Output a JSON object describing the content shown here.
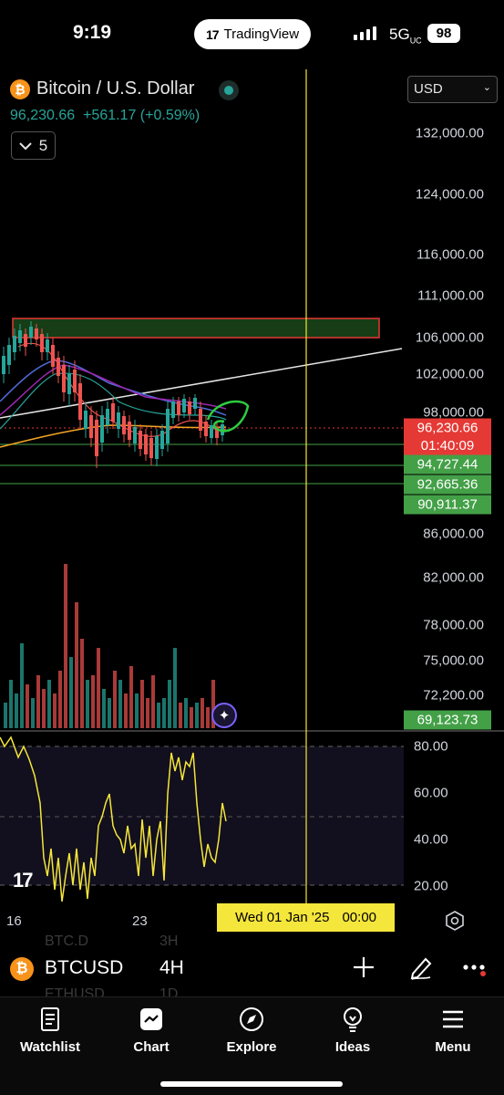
{
  "status_bar": {
    "time": "9:19",
    "app": "TradingView",
    "network": "5G",
    "network_sup": "UC",
    "battery": "98"
  },
  "header": {
    "badge": "₿",
    "pair_title": "Bitcoin / U.S. Dollar",
    "price": "96,230.66",
    "change": "+561.17 (+0.59%)",
    "collapse_count": "5",
    "currency": "USD"
  },
  "price_scale": [
    "132,000.00",
    "124,000.00",
    "116,000.00",
    "111,000.00",
    "106,000.00",
    "102,000.00",
    "98,000.00",
    "86,000.00",
    "82,000.00",
    "78,000.00",
    "75,000.00",
    "72,200.00"
  ],
  "price_tags": {
    "current": "96,230.66",
    "countdown": "01:40:09",
    "levels": [
      "94,727.44",
      "92,665.36",
      "90,911.37"
    ],
    "low": "69,123.73"
  },
  "oscillator_scale": [
    "80.00",
    "60.00",
    "40.00",
    "20.00"
  ],
  "time_axis": {
    "labels": [
      "16",
      "23"
    ],
    "cursor_date": "Wed 01 Jan '25",
    "cursor_time": "00:00"
  },
  "ghost_rows": {
    "row1_sym": "BTC.D",
    "row1_tf": "3H",
    "row2_sym": "ETHUSD",
    "row2_tf": "1D"
  },
  "symbol_bar": {
    "symbol": "BTCUSD",
    "timeframe": "4H"
  },
  "nav": [
    {
      "label": "Watchlist",
      "icon": "watchlist-icon"
    },
    {
      "label": "Chart",
      "icon": "chart-icon"
    },
    {
      "label": "Explore",
      "icon": "compass-icon"
    },
    {
      "label": "Ideas",
      "icon": "lightbulb-icon"
    },
    {
      "label": "Menu",
      "icon": "menu-icon"
    }
  ],
  "colors": {
    "up": "#26a69a",
    "down": "#ef5350",
    "cursor": "#f5e63b",
    "accent": "#7b61ff",
    "btc": "#f7931a"
  }
}
